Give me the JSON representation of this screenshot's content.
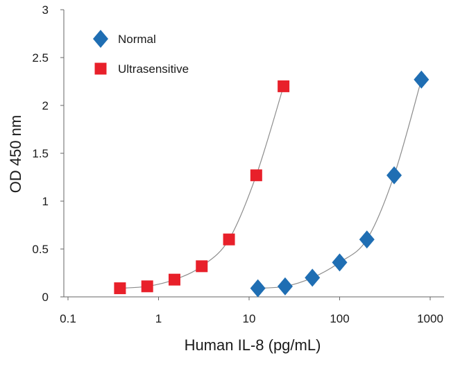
{
  "chart_data": {
    "type": "scatter",
    "title": "",
    "xlabel": "Human IL-8 (pg/mL)",
    "ylabel": "OD 450 nm",
    "x_scale": "log",
    "xlim": [
      0.1,
      1000
    ],
    "ylim": [
      0,
      3
    ],
    "x_ticks": [
      0.1,
      1,
      10,
      100,
      1000
    ],
    "x_tick_labels": [
      "0.1",
      "1",
      "10",
      "100",
      "1000"
    ],
    "y_ticks": [
      0,
      0.5,
      1,
      1.5,
      2,
      2.5,
      3
    ],
    "y_tick_labels": [
      "0",
      "0.5",
      "1",
      "1.5",
      "2",
      "2.5",
      "3"
    ],
    "grid": false,
    "legend_position": "top-left",
    "series": [
      {
        "name": "Normal",
        "marker": "diamond",
        "color": "#1f6eb3",
        "x": [
          12.5,
          25,
          50,
          100,
          200,
          400,
          800
        ],
        "y": [
          0.09,
          0.11,
          0.2,
          0.36,
          0.6,
          1.27,
          2.27
        ]
      },
      {
        "name": "Ultrasensitive",
        "marker": "square",
        "color": "#e8202a",
        "x": [
          0.375,
          0.75,
          1.5,
          3,
          6,
          12,
          24
        ],
        "y": [
          0.09,
          0.11,
          0.18,
          0.32,
          0.6,
          1.27,
          2.2
        ]
      }
    ],
    "fit_line_color": "#8c8c8c"
  }
}
